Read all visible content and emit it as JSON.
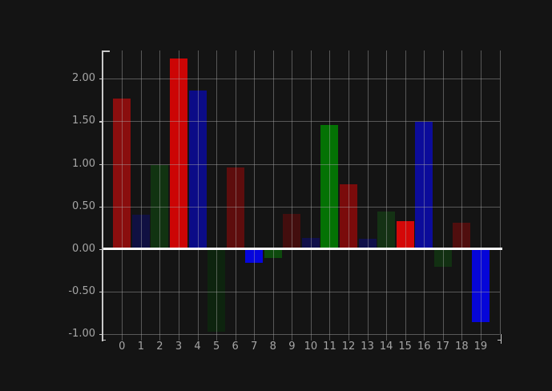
{
  "figure": {
    "background": "#141414"
  },
  "chart_data": {
    "type": "bar",
    "title": "",
    "xlabel": "",
    "ylabel": "",
    "legend": "none",
    "grid": true,
    "zero_line": true,
    "categories": [
      "0",
      "1",
      "2",
      "3",
      "4",
      "5",
      "6",
      "7",
      "8",
      "9",
      "10",
      "11",
      "12",
      "13",
      "14",
      "15",
      "16",
      "17",
      "18",
      "19"
    ],
    "values": [
      1.77,
      0.4,
      0.99,
      2.24,
      1.86,
      -0.97,
      0.96,
      -0.16,
      -0.11,
      0.41,
      0.13,
      1.46,
      0.76,
      0.12,
      0.44,
      0.33,
      1.49,
      -0.21,
      0.31,
      -0.86
    ],
    "bar_colors": [
      "#8a0e0e",
      "#101042",
      "#113311",
      "#cc0505",
      "#0b0b87",
      "#0d240e",
      "#5e0d0d",
      "#0606dd",
      "#0d4a0d",
      "#430e0e",
      "#10104a",
      "#047204",
      "#7a0b0b",
      "#10104a",
      "#143214",
      "#d40808",
      "#0c0c9a",
      "#123012",
      "#500e0e",
      "#0606d8"
    ],
    "y_ticks": [
      {
        "label": "2.00",
        "value": 2.0
      },
      {
        "label": "1.50",
        "value": 1.5
      },
      {
        "label": "1.00",
        "value": 1.0
      },
      {
        "label": "0.50",
        "value": 0.5
      },
      {
        "label": "0.00",
        "value": 0.0
      },
      {
        "label": "-0.50",
        "value": -0.5
      },
      {
        "label": "-1.00",
        "value": -1.0
      }
    ],
    "ylim": [
      -1.08,
      2.33
    ],
    "colors": {
      "grid": "rgba(170,170,170,0.45)",
      "axis": "#c9c9c9",
      "zero_line": "#ffffff",
      "tick_label": "#a6a6a6"
    }
  }
}
